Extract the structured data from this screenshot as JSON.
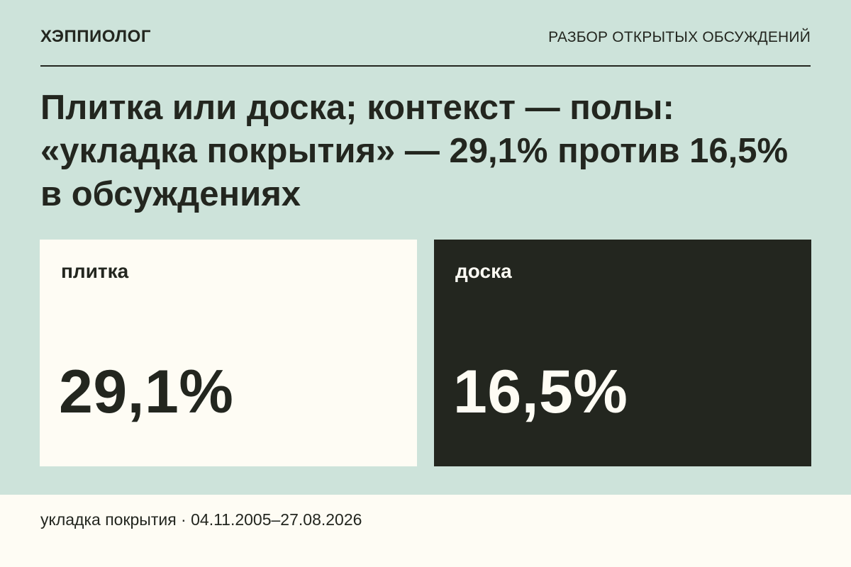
{
  "header": {
    "brand": "ХЭППИОЛОГ",
    "section": "РАЗБОР ОТКРЫТЫХ ОБСУЖДЕНИЙ"
  },
  "headline": "Плитка или доска; контекст — полы: «укладка покрытия» — 29,1% против 16,5% в обсуждениях",
  "cards": [
    {
      "label": "плитка",
      "value": "29,1%"
    },
    {
      "label": "доска",
      "value": "16,5%"
    }
  ],
  "footer": {
    "text": "укладка покрытия · 04.11.2005–27.08.2026"
  },
  "colors": {
    "background": "#cde3da",
    "card_light": "#fefcf4",
    "card_dark": "#23261f",
    "ink": "#23261f"
  }
}
